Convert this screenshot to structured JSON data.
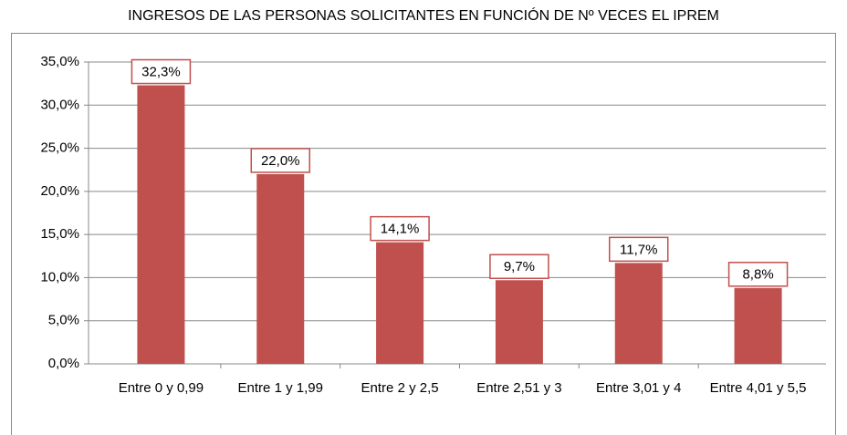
{
  "chart_data": {
    "type": "bar",
    "title": "INGRESOS DE LAS PERSONAS SOLICITANTES EN FUNCIÓN DE Nº VECES EL IPREM",
    "categories": [
      "Entre 0 y 0,99",
      "Entre 1 y 1,99",
      "Entre 2 y 2,5",
      "Entre 2,51 y 3",
      "Entre 3,01 y 4",
      "Entre 4,01 y 5,5"
    ],
    "values": [
      32.3,
      22.0,
      14.1,
      9.7,
      11.7,
      8.8
    ],
    "value_labels": [
      "32,3%",
      "22,0%",
      "14,1%",
      "9,7%",
      "11,7%",
      "8,8%"
    ],
    "color": "#c0504d",
    "ylim": [
      0,
      35
    ],
    "yticks": [
      {
        "value": 0,
        "label": "0,0%"
      },
      {
        "value": 5,
        "label": "5,0%"
      },
      {
        "value": 10,
        "label": "10,0%"
      },
      {
        "value": 15,
        "label": "15,0%"
      },
      {
        "value": 20,
        "label": "20,0%"
      },
      {
        "value": 25,
        "label": "25,0%"
      },
      {
        "value": 30,
        "label": "30,0%"
      },
      {
        "value": 35,
        "label": "35,0%"
      }
    ],
    "grid": true
  }
}
